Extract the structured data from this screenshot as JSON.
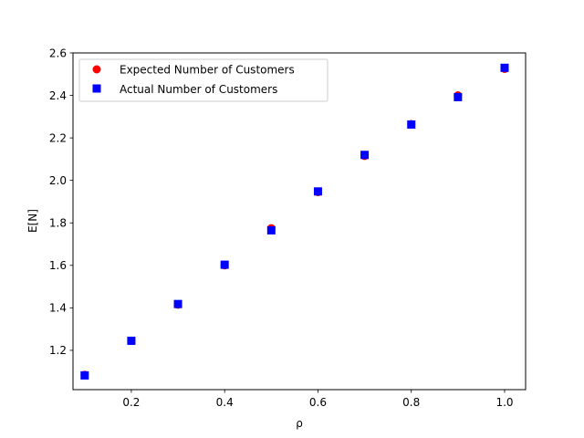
{
  "chart_data": {
    "type": "scatter",
    "title": "",
    "xlabel": "ρ",
    "ylabel": "E[N]",
    "xlim": [
      0.075,
      1.045
    ],
    "ylim": [
      1.015,
      2.6
    ],
    "xticks": [
      0.2,
      0.4,
      0.6,
      0.8,
      1.0
    ],
    "xtick_labels": [
      "0.2",
      "0.4",
      "0.6",
      "0.8",
      "1.0"
    ],
    "yticks": [
      1.2,
      1.4,
      1.6,
      1.8,
      2.0,
      2.2,
      2.4,
      2.6
    ],
    "ytick_labels": [
      "1.2",
      "1.4",
      "1.6",
      "1.8",
      "2.0",
      "2.2",
      "2.4",
      "2.6"
    ],
    "grid": false,
    "legend_position": "top-left",
    "series": [
      {
        "name": "Expected Number of Customers",
        "marker": "circle",
        "color": "#ff0000",
        "x": [
          0.1,
          0.2,
          0.3,
          0.4,
          0.5,
          0.6,
          0.7,
          0.8,
          0.9,
          1.0
        ],
        "y": [
          1.085,
          1.245,
          1.415,
          1.6,
          1.775,
          1.945,
          2.115,
          2.265,
          2.4,
          2.525
        ]
      },
      {
        "name": "Actual Number of Customers",
        "marker": "square",
        "color": "#0000ff",
        "x": [
          0.1,
          0.2,
          0.3,
          0.4,
          0.5,
          0.6,
          0.7,
          0.8,
          0.9,
          1.0
        ],
        "y": [
          1.082,
          1.245,
          1.418,
          1.603,
          1.765,
          1.948,
          2.12,
          2.263,
          2.392,
          2.53
        ]
      }
    ]
  }
}
